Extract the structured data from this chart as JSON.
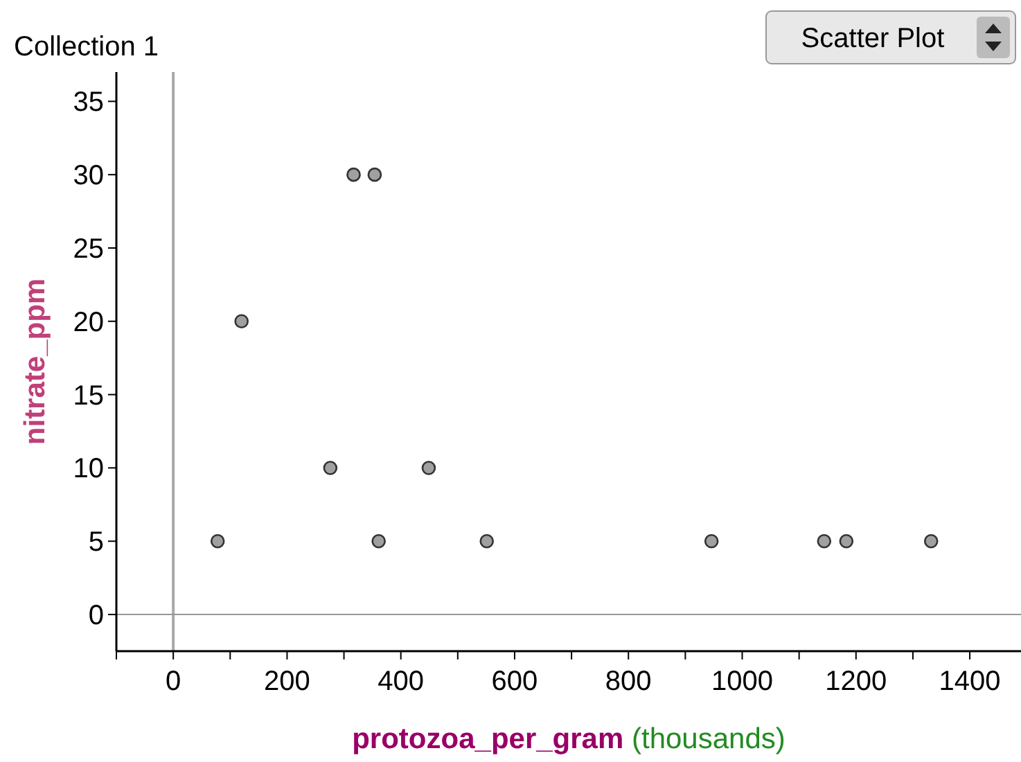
{
  "chart_data": {
    "type": "scatter",
    "title": "Collection 1",
    "xlabel": "protozoa_per_gram (thousands)",
    "ylabel": "nitrate_ppm",
    "annotations": [
      "Scatter Plot"
    ],
    "x": [
      78,
      120,
      276,
      317,
      354,
      361,
      449,
      551,
      946,
      1144,
      1183,
      1332
    ],
    "series": [
      {
        "color": "#a0a0a0",
        "values": [
          5,
          20,
          10,
          30,
          30,
          5,
          10,
          5,
          5,
          5,
          5,
          5
        ]
      }
    ],
    "xlim": [
      -100,
      1490
    ],
    "ylim": [
      -2.5,
      37
    ],
    "xticks": [
      {
        "value": -100,
        "label": null
      },
      0,
      {
        "value": 100,
        "label": null
      },
      200,
      {
        "value": 300,
        "label": null
      },
      400,
      {
        "value": 500,
        "label": null
      },
      600,
      {
        "value": 700,
        "label": null
      },
      800,
      {
        "value": 900,
        "label": null
      },
      1000,
      {
        "value": 1100,
        "label": null
      },
      1200,
      {
        "value": 1300,
        "label": null
      },
      1400
    ],
    "yticks": [
      0,
      5,
      10,
      15,
      20,
      25,
      30,
      35
    ],
    "ref_lines": [
      {
        "axis": "x",
        "value": 0,
        "color": "#a8a8a8"
      },
      {
        "axis": "y",
        "value": 0,
        "color": "#989898"
      }
    ],
    "marker": "circle",
    "grid": false
  }
}
